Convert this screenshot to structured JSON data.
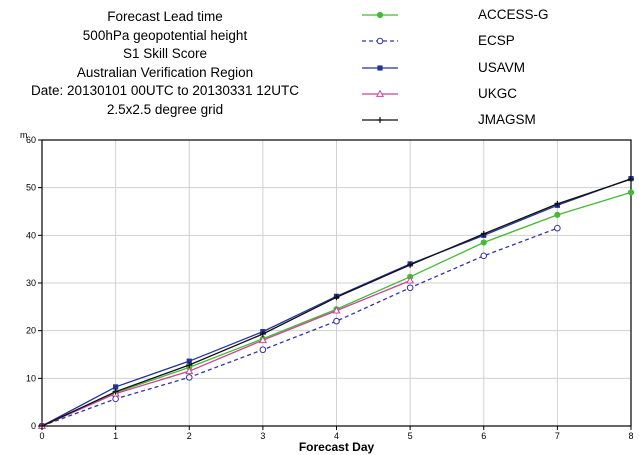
{
  "header": {
    "lines": [
      "Forecast Lead time",
      "500hPa geopotential height",
      "S1 Skill Score",
      "Australian Verification Region",
      "Date: 20130101 00UTC to 20130331 12UTC",
      "2.5x2.5 degree grid"
    ]
  },
  "chart_data": {
    "type": "line",
    "title": "Forecast Lead time",
    "xlabel": "Forecast Day",
    "ylabel": "m",
    "xlim": [
      0,
      8
    ],
    "ylim": [
      0,
      60
    ],
    "x_ticks": [
      0,
      1,
      2,
      3,
      4,
      5,
      6,
      7,
      8
    ],
    "y_ticks": [
      0,
      10,
      20,
      30,
      40,
      50,
      60
    ],
    "grid": true,
    "legend_position": "top-right",
    "series": [
      {
        "name": "ACCESS-G",
        "color": "#44bb33",
        "marker": "circle-filled",
        "dash": "solid",
        "x": [
          0,
          1,
          2,
          3,
          4,
          5,
          6,
          7,
          8
        ],
        "y": [
          0,
          7.0,
          12.3,
          18.3,
          24.5,
          31.3,
          38.5,
          44.3,
          49.0
        ]
      },
      {
        "name": "ECSP",
        "color": "#3333aa",
        "marker": "circle-open",
        "dash": "dashed",
        "x": [
          0,
          1,
          2,
          3,
          4,
          5,
          6,
          7
        ],
        "y": [
          0,
          5.7,
          10.2,
          16.0,
          22.0,
          29.0,
          35.7,
          41.5
        ]
      },
      {
        "name": "USAVM",
        "color": "#223399",
        "marker": "square-filled",
        "dash": "solid",
        "x": [
          0,
          1,
          2,
          3,
          4,
          5,
          6,
          7,
          8
        ],
        "y": [
          0,
          8.2,
          13.6,
          19.8,
          27.2,
          34.0,
          40.0,
          46.3,
          51.9
        ]
      },
      {
        "name": "UKGC",
        "color": "#cc4499",
        "marker": "triangle-open",
        "dash": "solid",
        "x": [
          0,
          1,
          2,
          3,
          4,
          5
        ],
        "y": [
          0,
          6.8,
          11.5,
          18.0,
          24.2,
          30.5
        ]
      },
      {
        "name": "JMAGSM",
        "color": "#111111",
        "marker": "plus",
        "dash": "solid",
        "x": [
          0,
          1,
          2,
          3,
          4,
          5,
          6,
          7,
          8
        ],
        "y": [
          0,
          7.2,
          12.8,
          19.3,
          27.0,
          33.8,
          40.3,
          46.6,
          51.8
        ]
      }
    ]
  }
}
